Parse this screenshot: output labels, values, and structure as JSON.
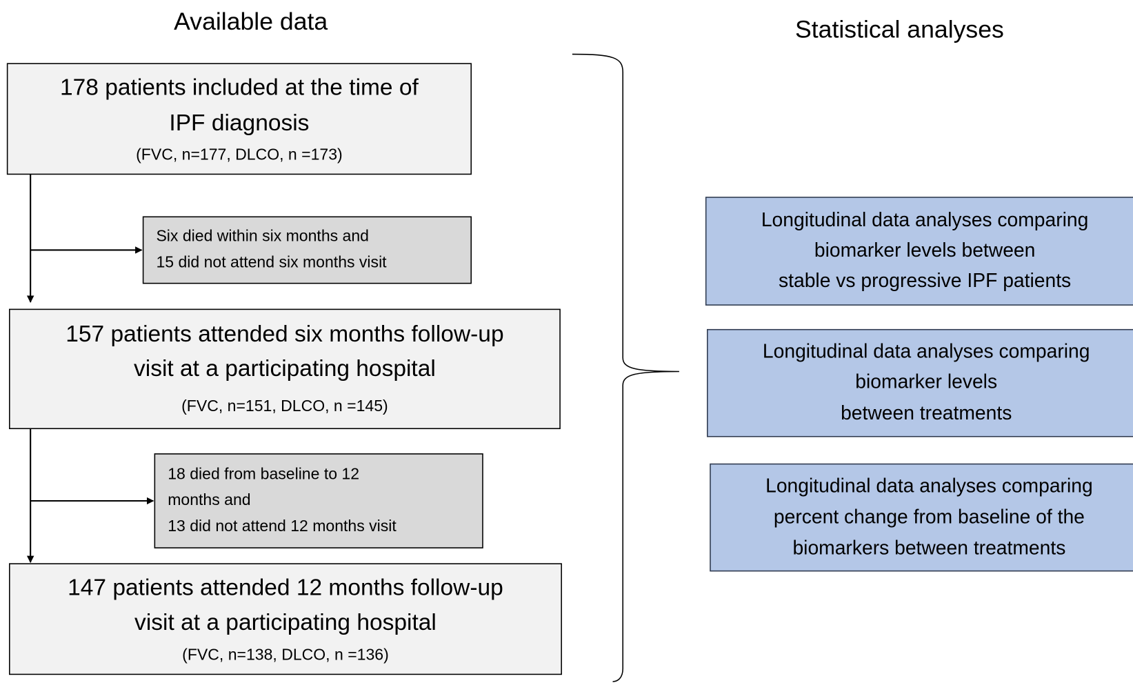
{
  "headers": {
    "left": "Available data",
    "right": "Statistical analyses"
  },
  "flow": [
    {
      "lines": [
        "178 patients included at the time of",
        "IPF diagnosis"
      ],
      "note": "(FVC, n=177, DLCO, n =173)"
    },
    {
      "lines": [
        "157 patients attended six months follow-up",
        "visit at a participating hospital"
      ],
      "note": "(FVC, n=151, DLCO, n =145)"
    },
    {
      "lines": [
        "147 patients attended 12 months follow-up",
        "visit at a participating hospital"
      ],
      "note": "(FVC, n=138, DLCO, n =136)"
    }
  ],
  "exclusions": [
    {
      "lines": [
        "Six died within six months and",
        "15 did not attend six months visit"
      ]
    },
    {
      "lines": [
        "18 died from baseline to 12",
        "months and",
        "13 did not attend 12 months visit"
      ]
    }
  ],
  "analyses": [
    {
      "lines": [
        "Longitudinal data analyses comparing",
        "biomarker levels between",
        "stable vs progressive IPF patients"
      ]
    },
    {
      "lines": [
        "Longitudinal data analyses comparing",
        "biomarker levels",
        "between treatments"
      ]
    },
    {
      "lines": [
        "Longitudinal data analyses comparing",
        "percent change from baseline of the",
        "biomarkers between treatments"
      ]
    }
  ]
}
